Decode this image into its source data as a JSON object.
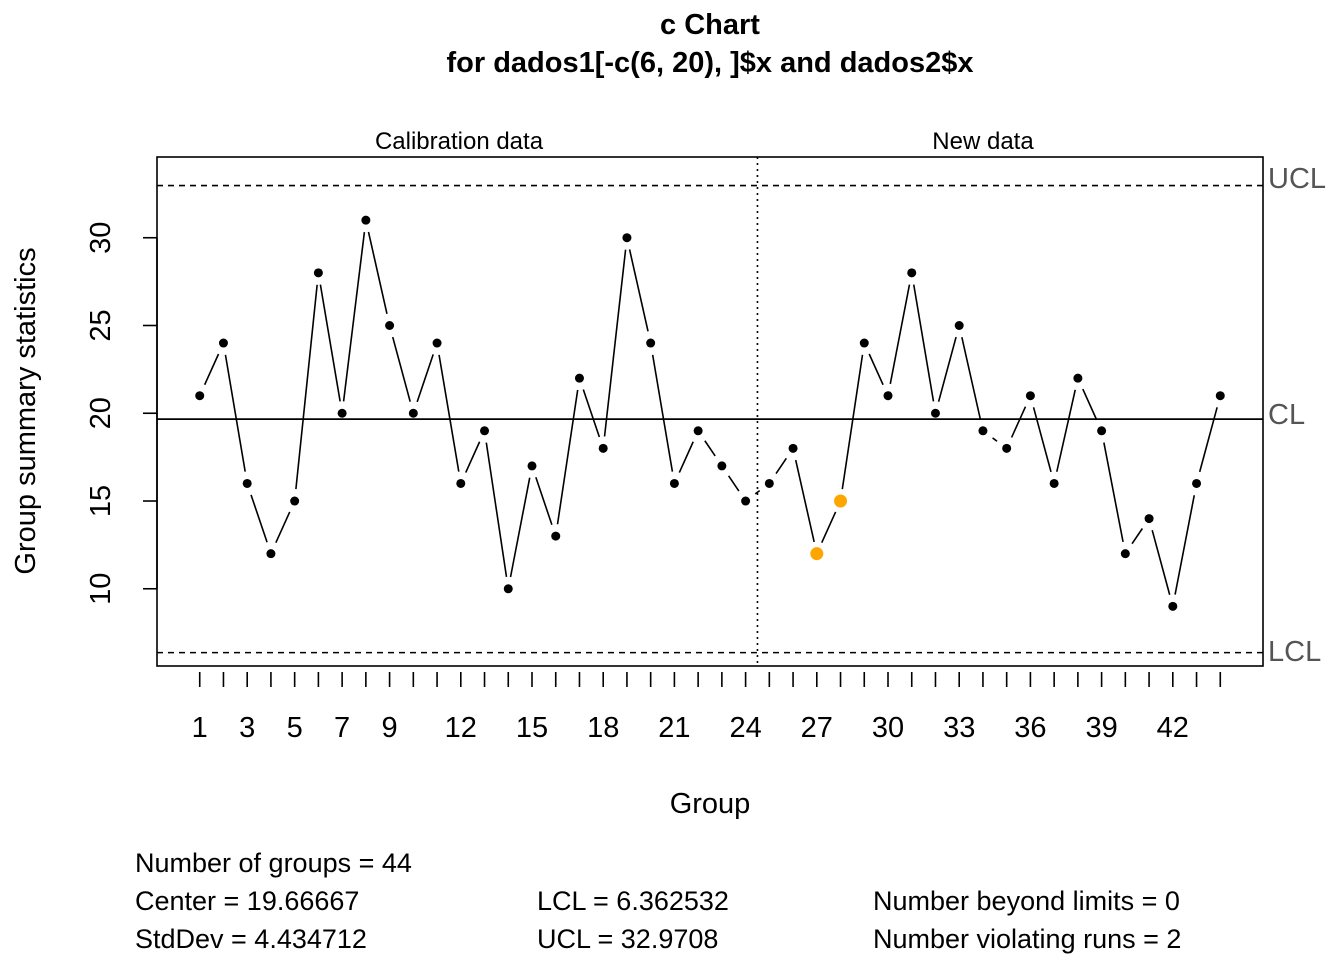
{
  "chart_data": {
    "type": "line",
    "title": "c Chart",
    "subtitle": "for dados1[-c(6, 20), ]$x and dados2$x",
    "xlabel": "Group",
    "ylabel": "Group summary statistics",
    "sections": [
      "Calibration data",
      "New data"
    ],
    "x": [
      1,
      2,
      3,
      4,
      5,
      6,
      7,
      8,
      9,
      10,
      11,
      12,
      13,
      14,
      15,
      16,
      17,
      18,
      19,
      20,
      21,
      22,
      23,
      24,
      25,
      26,
      27,
      28,
      29,
      30,
      31,
      32,
      33,
      34,
      35,
      36,
      37,
      38,
      39,
      40,
      41,
      42,
      43,
      44
    ],
    "values": [
      21,
      24,
      16,
      12,
      15,
      28,
      20,
      31,
      25,
      20,
      24,
      16,
      19,
      10,
      17,
      13,
      22,
      18,
      30,
      24,
      16,
      19,
      17,
      15,
      16,
      18,
      12,
      15,
      24,
      21,
      28,
      20,
      25,
      19,
      18,
      21,
      16,
      22,
      19,
      12,
      14,
      9,
      16,
      21
    ],
    "calibration_count": 24,
    "highlighted_points": [
      27,
      28
    ],
    "x_tick_labels": [
      "1",
      "3",
      "5",
      "7",
      "9",
      "12",
      "15",
      "18",
      "21",
      "24",
      "27",
      "30",
      "33",
      "36",
      "39",
      "42"
    ],
    "x_tick_label_positions": [
      1,
      3,
      5,
      7,
      9,
      12,
      15,
      18,
      21,
      24,
      27,
      30,
      33,
      36,
      39,
      42
    ],
    "y_ticks": [
      10,
      15,
      20,
      25,
      30
    ],
    "ylim": [
      5.6,
      34.6
    ],
    "xlim": [
      -0.8,
      45.8
    ],
    "center": 19.66667,
    "lcl": 6.362532,
    "ucl": 32.9708,
    "limit_labels": {
      "ucl": "UCL",
      "cl": "CL",
      "lcl": "LCL"
    },
    "colors": {
      "point": "#000000",
      "highlight": "#FFA500",
      "limit_text": "#555555"
    },
    "grid": false,
    "legend": "none"
  },
  "stats": {
    "groups": "Number of groups = 44",
    "center": "Center = 19.66667",
    "stddev": "StdDev = 4.434712",
    "lcl": "LCL = 6.362532",
    "ucl": "UCL = 32.9708",
    "beyond": "Number beyond limits = 0",
    "runs": "Number violating runs = 2"
  }
}
